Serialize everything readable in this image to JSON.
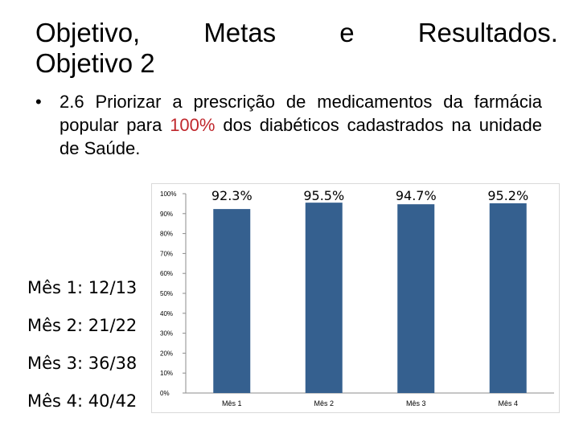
{
  "slide": {
    "title_words": [
      "Objetivo,",
      "Metas",
      "e",
      "Resultados."
    ],
    "title_line2": "Objetivo 2",
    "bullet": {
      "symbol": "•",
      "text_before": "2.6 Priorizar a prescrição de medicamentos da farmácia popular para ",
      "highlight": "100%",
      "text_after": " dos diabéticos cadastrados na unidade de Saúde."
    },
    "counts": [
      "Mês 1: 12/13",
      "Mês 2: 21/22",
      "Mês 3: 36/38",
      "Mês 4: 40/42"
    ]
  },
  "colors": {
    "bar": "#35608f",
    "highlight": "#c0282d",
    "border": "#d9d9d9"
  },
  "chart_data": {
    "type": "bar",
    "categories": [
      "Mês 1",
      "Mês 2",
      "Mês 3",
      "Mês 4"
    ],
    "values": [
      92.3,
      95.5,
      94.7,
      95.2
    ],
    "data_labels": [
      "92.3%",
      "95.5%",
      "94.7%",
      "95.2%"
    ],
    "y_ticks": [
      "0%",
      "10%",
      "20%",
      "30%",
      "40%",
      "50%",
      "60%",
      "70%",
      "80%",
      "90%",
      "100%"
    ],
    "ylim": [
      0,
      100
    ],
    "grid": false,
    "legend": "none"
  }
}
